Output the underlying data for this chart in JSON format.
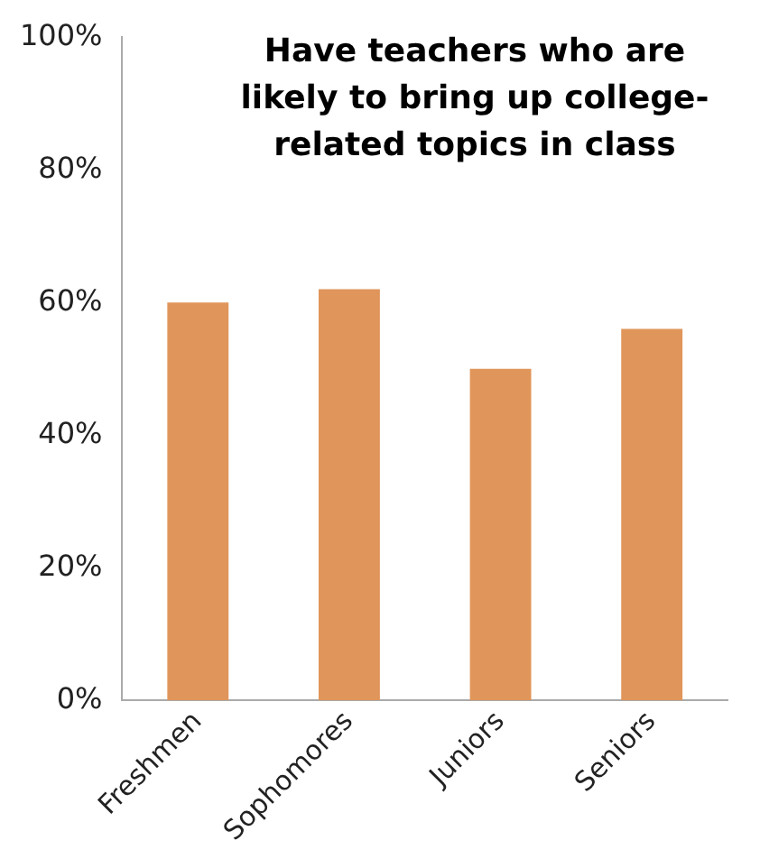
{
  "chart_data": {
    "type": "bar",
    "title": "Have teachers who are likely to bring up college-related topics in class",
    "categories": [
      "Freshmen",
      "Sophomores",
      "Juniors",
      "Seniors"
    ],
    "values": [
      60,
      62,
      50,
      56
    ],
    "color": "#e0955a",
    "ylim": [
      0,
      100
    ],
    "yticks": [
      {
        "value": 0,
        "label": "0%"
      },
      {
        "value": 20,
        "label": "20%"
      },
      {
        "value": 40,
        "label": "40%"
      },
      {
        "value": 60,
        "label": "60%"
      },
      {
        "value": 80,
        "label": "80%"
      },
      {
        "value": 100,
        "label": "100%"
      }
    ],
    "grid": false,
    "legend": false
  }
}
